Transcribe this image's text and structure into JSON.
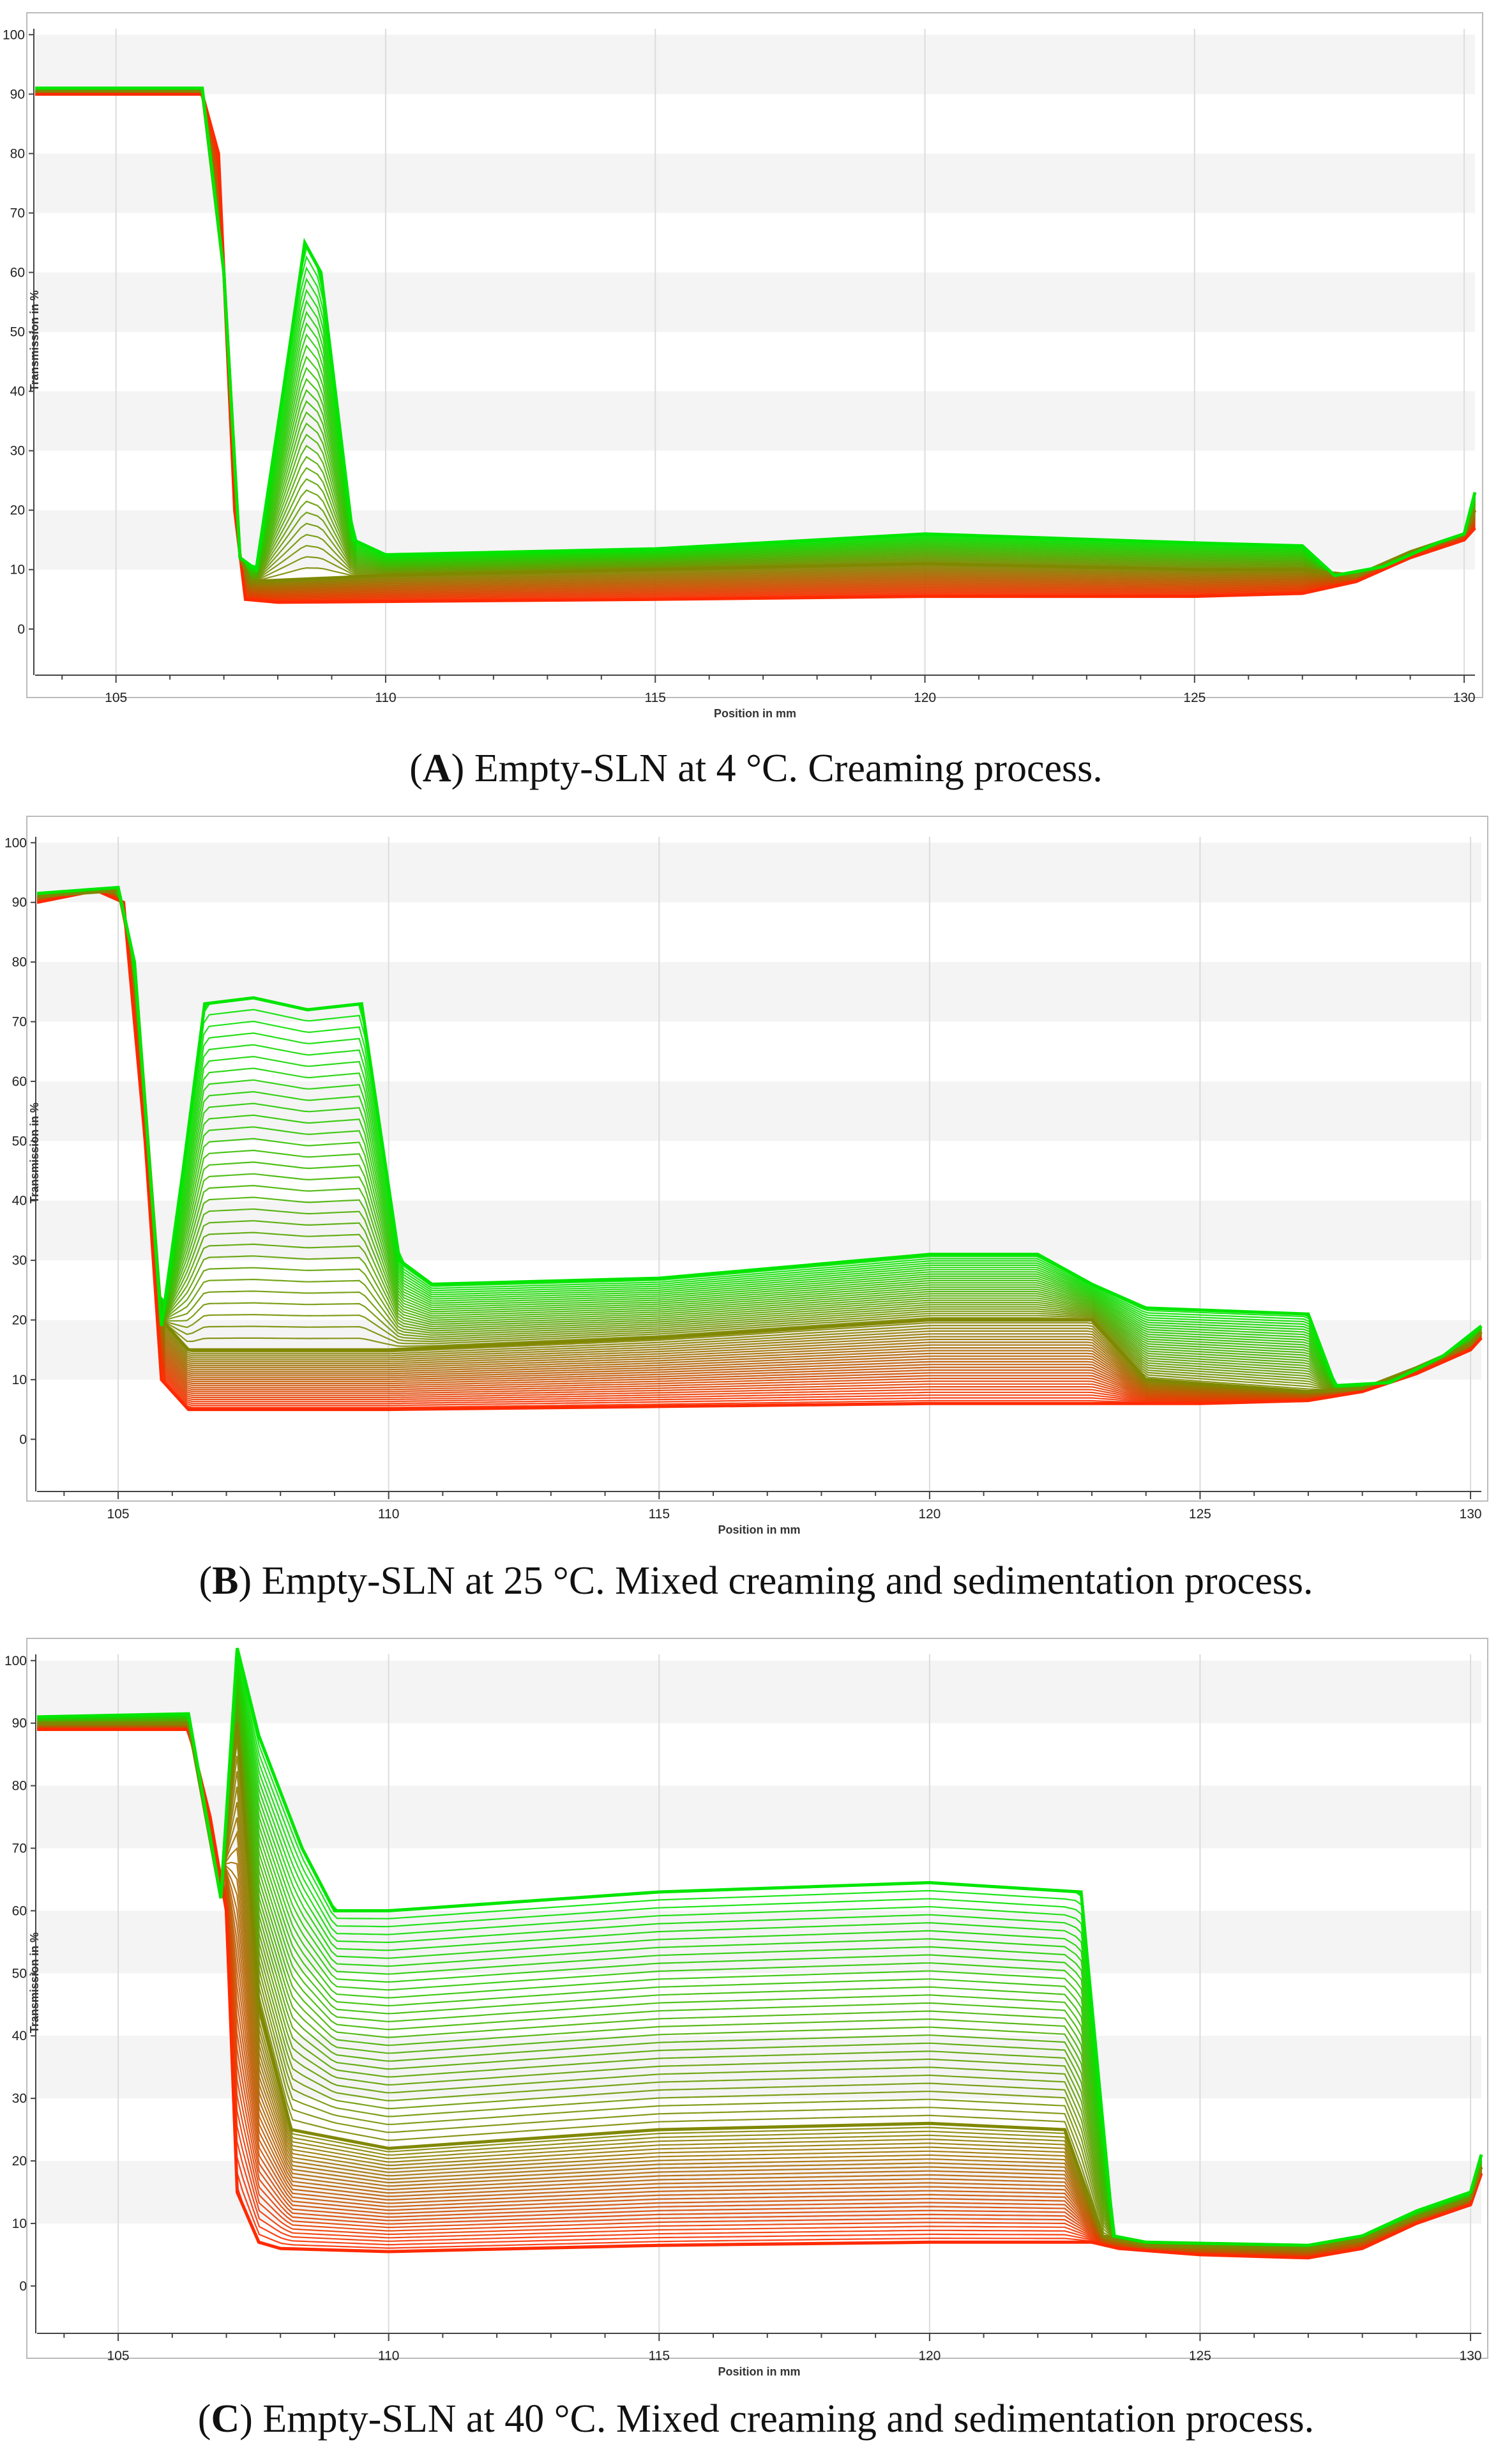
{
  "chart_data": [
    {
      "type": "line",
      "panel": "A",
      "caption_letter": "A",
      "caption_text": "Empty-SLN at 4 °C. Creaming process.",
      "xlabel": "Position in mm",
      "ylabel": "Transmission in %",
      "xlim": [
        103.5,
        130.2
      ],
      "ylim": [
        -4,
        101
      ],
      "xticks": [
        105,
        110,
        115,
        120,
        125,
        130
      ],
      "yticks": [
        0,
        10,
        20,
        30,
        40,
        50,
        60,
        70,
        80,
        90,
        100
      ],
      "grid": true,
      "series_color_gradient": [
        "#ff2a00",
        "#00e600"
      ],
      "series": [
        {
          "values": [
            [
              103.5,
              90
            ],
            [
              106.6,
              90
            ],
            [
              106.9,
              80
            ],
            [
              107.2,
              20
            ],
            [
              107.4,
              5
            ],
            [
              108,
              4.5
            ],
            [
              115,
              5
            ],
            [
              120,
              5.5
            ],
            [
              125,
              5.5
            ],
            [
              127,
              6
            ],
            [
              128,
              8
            ],
            [
              129,
              12
            ],
            [
              130,
              15
            ],
            [
              130.2,
              17
            ]
          ]
        },
        {
          "values": [
            [
              103.5,
              90.5
            ],
            [
              106.6,
              90.5
            ],
            [
              107,
              60
            ],
            [
              107.3,
              12
            ],
            [
              107.5,
              8
            ],
            [
              110,
              9
            ],
            [
              115,
              10
            ],
            [
              120,
              11
            ],
            [
              125,
              10
            ],
            [
              127,
              10
            ],
            [
              128,
              9
            ],
            [
              129,
              13
            ],
            [
              130,
              16
            ],
            [
              130.2,
              20
            ]
          ]
        },
        {
          "values": [
            [
              103.5,
              91
            ],
            [
              106.6,
              91
            ],
            [
              107,
              60
            ],
            [
              107.3,
              12
            ],
            [
              107.6,
              10
            ],
            [
              108.1,
              40
            ],
            [
              108.5,
              65
            ],
            [
              108.8,
              60
            ],
            [
              109.4,
              15
            ],
            [
              110,
              12.5
            ],
            [
              115,
              13.5
            ],
            [
              120,
              16
            ],
            [
              125,
              14.5
            ],
            [
              127,
              14
            ],
            [
              127.6,
              9
            ],
            [
              128.5,
              10.5
            ],
            [
              129.5,
              14.5
            ],
            [
              130,
              16
            ],
            [
              130.2,
              23
            ]
          ]
        }
      ]
    },
    {
      "type": "line",
      "panel": "B",
      "caption_letter": "B",
      "caption_text": "Empty-SLN at 25 °C. Mixed creaming and sedimentation process.",
      "xlabel": "Position in mm",
      "ylabel": "Transmission in %",
      "xlim": [
        103.5,
        130.2
      ],
      "ylim": [
        -5,
        101
      ],
      "xticks": [
        105,
        110,
        115,
        120,
        125,
        130
      ],
      "yticks": [
        0,
        10,
        20,
        30,
        40,
        50,
        60,
        70,
        80,
        90,
        100
      ],
      "grid": true,
      "series_color_gradient": [
        "#ff2a00",
        "#00e600"
      ],
      "series": [
        {
          "values": [
            [
              103.5,
              90
            ],
            [
              104.6,
              92
            ],
            [
              105.1,
              90
            ],
            [
              105.5,
              50
            ],
            [
              105.8,
              10
            ],
            [
              106.3,
              5
            ],
            [
              110,
              5
            ],
            [
              115,
              5.5
            ],
            [
              120,
              6
            ],
            [
              125,
              6
            ],
            [
              127,
              6.5
            ],
            [
              128,
              8
            ],
            [
              129,
              11
            ],
            [
              130,
              15
            ],
            [
              130.2,
              17
            ]
          ]
        },
        {
          "values": [
            [
              103.5,
              91
            ],
            [
              105,
              92
            ],
            [
              105.3,
              80
            ],
            [
              105.8,
              20
            ],
            [
              106.3,
              15
            ],
            [
              110,
              15
            ],
            [
              115,
              17
            ],
            [
              120,
              20
            ],
            [
              123,
              20
            ],
            [
              124,
              10
            ],
            [
              127,
              8
            ],
            [
              128,
              8.5
            ],
            [
              129,
              12
            ],
            [
              130,
              16
            ],
            [
              130.2,
              18
            ]
          ]
        },
        {
          "values": [
            [
              103.5,
              91.5
            ],
            [
              105,
              92.5
            ],
            [
              105.3,
              80
            ],
            [
              105.8,
              19
            ],
            [
              106.2,
              45
            ],
            [
              106.6,
              73
            ],
            [
              107.5,
              74
            ],
            [
              108.5,
              72
            ],
            [
              109.5,
              73
            ],
            [
              110.2,
              30
            ],
            [
              110.8,
              26
            ],
            [
              115,
              27
            ],
            [
              120,
              31
            ],
            [
              122,
              31
            ],
            [
              123,
              26
            ],
            [
              124,
              22
            ],
            [
              127,
              21
            ],
            [
              127.5,
              9
            ],
            [
              128.5,
              9.5
            ],
            [
              129.5,
              14
            ],
            [
              130.2,
              19
            ]
          ]
        }
      ]
    },
    {
      "type": "line",
      "panel": "C",
      "caption_letter": "C",
      "caption_text": "Empty-SLN at 40 °C. Mixed creaming and sedimentation process.",
      "xlabel": "Position in mm",
      "ylabel": "Transmission in %",
      "xlim": [
        103.5,
        130.2
      ],
      "ylim": [
        -4,
        101
      ],
      "xticks": [
        105,
        110,
        115,
        120,
        125,
        130
      ],
      "yticks": [
        0,
        10,
        20,
        30,
        40,
        50,
        60,
        70,
        80,
        90,
        100
      ],
      "grid": true,
      "series_color_gradient": [
        "#ff2a00",
        "#00e600"
      ],
      "series": [
        {
          "values": [
            [
              103.5,
              89
            ],
            [
              106.3,
              89
            ],
            [
              106.7,
              75
            ],
            [
              107,
              60
            ],
            [
              107.2,
              15
            ],
            [
              107.6,
              7
            ],
            [
              108,
              6
            ],
            [
              110,
              5.5
            ],
            [
              115,
              6.5
            ],
            [
              120,
              7
            ],
            [
              123,
              7
            ],
            [
              123.5,
              6
            ],
            [
              125,
              5
            ],
            [
              127,
              4.5
            ],
            [
              128,
              6
            ],
            [
              129,
              10
            ],
            [
              130,
              13
            ],
            [
              130.2,
              18
            ]
          ]
        },
        {
          "values": [
            [
              103.5,
              90
            ],
            [
              106.3,
              90
            ],
            [
              106.9,
              62
            ],
            [
              107.2,
              90
            ],
            [
              107.6,
              45
            ],
            [
              108.2,
              25
            ],
            [
              110,
              22
            ],
            [
              115,
              25
            ],
            [
              120,
              26
            ],
            [
              122.5,
              25
            ],
            [
              123.2,
              8
            ],
            [
              124,
              6.5
            ],
            [
              127,
              6
            ],
            [
              128,
              7.5
            ],
            [
              129,
              11
            ],
            [
              130,
              14
            ],
            [
              130.2,
              19
            ]
          ]
        },
        {
          "values": [
            [
              103.5,
              91
            ],
            [
              106.3,
              91.5
            ],
            [
              106.9,
              62
            ],
            [
              107.2,
              102
            ],
            [
              107.6,
              88
            ],
            [
              108.4,
              70
            ],
            [
              109,
              60
            ],
            [
              110,
              60
            ],
            [
              115,
              63
            ],
            [
              120,
              64.5
            ],
            [
              122.8,
              63
            ],
            [
              123.4,
              8
            ],
            [
              124,
              7
            ],
            [
              127,
              6.5
            ],
            [
              128,
              8
            ],
            [
              129,
              12
            ],
            [
              130,
              15
            ],
            [
              130.2,
              21
            ]
          ]
        }
      ]
    }
  ]
}
